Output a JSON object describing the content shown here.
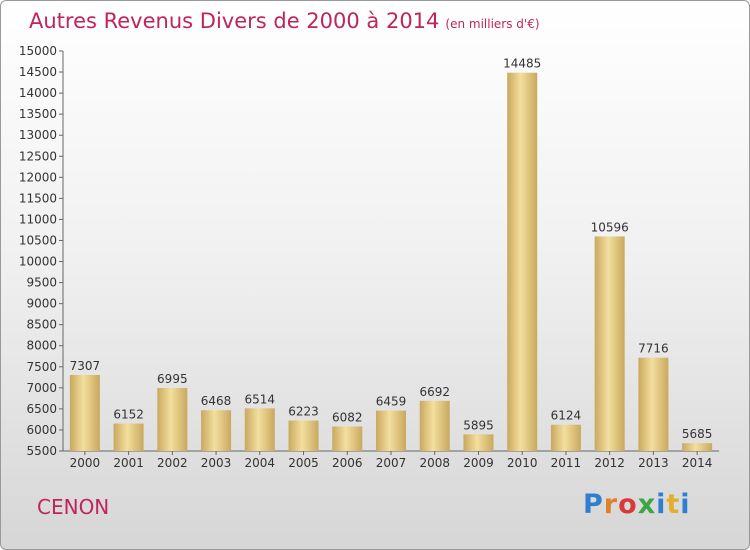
{
  "title": "Autres Revenus Divers de 2000 à 2014",
  "subtitle": "(en milliers d'€)",
  "city": "CENON",
  "logo": {
    "letters": [
      "P",
      "r",
      "o",
      "x",
      "i",
      "t",
      "i"
    ]
  },
  "colors": {
    "title": "#c0245c",
    "bar_light": "#f3df9e",
    "bar_dark": "#c9a85e"
  },
  "chart_data": {
    "type": "bar",
    "title": "Autres Revenus Divers de 2000 à 2014",
    "subtitle": "(en milliers d'€)",
    "categories": [
      "2000",
      "2001",
      "2002",
      "2003",
      "2004",
      "2005",
      "2006",
      "2007",
      "2008",
      "2009",
      "2010",
      "2011",
      "2012",
      "2013",
      "2014"
    ],
    "values": [
      7307,
      6152,
      6995,
      6468,
      6514,
      6223,
      6082,
      6459,
      6692,
      5895,
      14485,
      6124,
      10596,
      7716,
      5685
    ],
    "ylim": [
      5500,
      15000
    ],
    "yticks": [
      5500,
      6000,
      6500,
      7000,
      7500,
      8000,
      8500,
      9000,
      9500,
      10000,
      10500,
      11000,
      11500,
      12000,
      12500,
      13000,
      13500,
      14000,
      14500,
      15000
    ],
    "grid": false,
    "data_labels": true
  }
}
